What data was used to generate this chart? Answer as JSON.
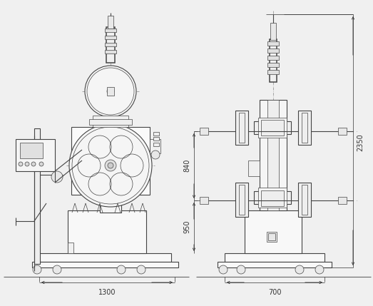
{
  "bg_color": "#f0f0f0",
  "lc": "#444444",
  "dc": "#333333",
  "tlw": 0.5,
  "mlw": 0.8,
  "thklw": 1.1,
  "dim_1300": "1300",
  "dim_700": "700",
  "dim_840": "840",
  "dim_950": "950",
  "dim_2350": "2350"
}
